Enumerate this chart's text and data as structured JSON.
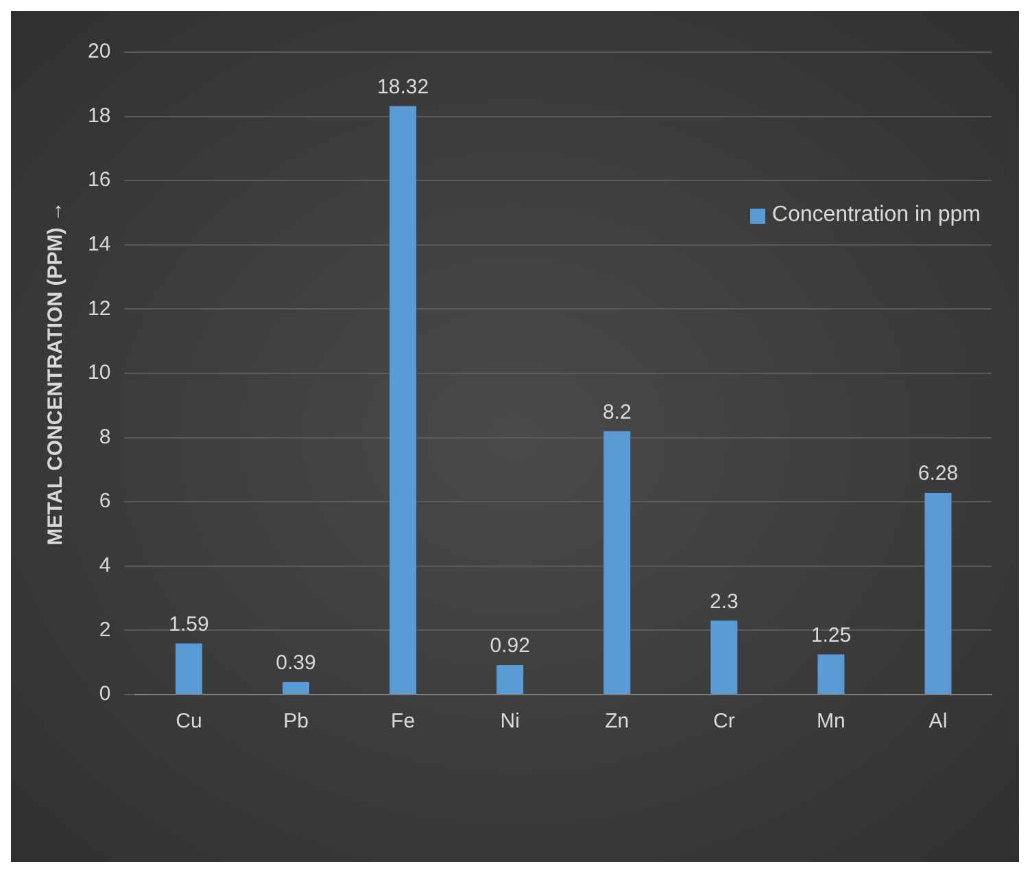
{
  "chart_data": {
    "type": "bar",
    "ylabel": "METAL CONCENTRATION (PPM) →",
    "categories": [
      "Cu",
      "Pb",
      "Fe",
      "Ni",
      "Zn",
      "Cr",
      "Mn",
      "Al"
    ],
    "series": [
      {
        "name": "Concentration in ppm",
        "color": "#5b9bd5",
        "values": [
          1.59,
          0.39,
          18.32,
          0.92,
          8.2,
          2.3,
          1.25,
          6.28
        ]
      }
    ],
    "ylim": [
      0,
      20
    ],
    "yticks": [
      0,
      2,
      4,
      6,
      8,
      10,
      12,
      14,
      16,
      18,
      20
    ],
    "grid": "y",
    "legend": "top right",
    "data_labels": true
  }
}
